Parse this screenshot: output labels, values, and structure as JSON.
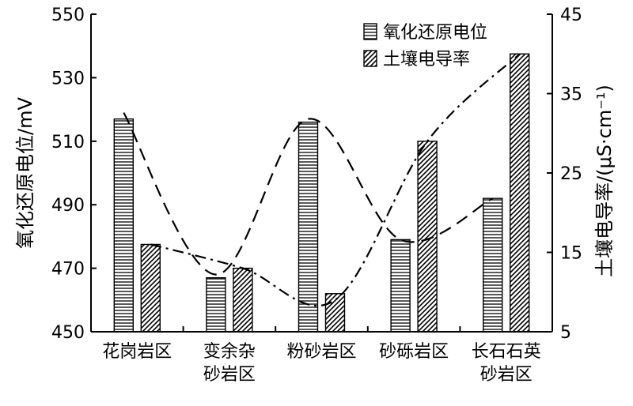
{
  "chart_data": {
    "type": "bar",
    "categories": [
      "花岗岩区",
      "变余杂\n砂岩区",
      "粉砂岩区",
      "砂砾岩区",
      "长石石英\n砂岩区"
    ],
    "series": [
      {
        "name": "氧化还原电位",
        "axis": "left",
        "pattern": "horizontal-lines",
        "values": [
          517,
          467,
          516,
          479,
          492
        ]
      },
      {
        "name": "土壤电导率",
        "axis": "right",
        "pattern": "diagonal-hatch",
        "values": [
          16,
          13,
          9.8,
          29,
          40
        ]
      }
    ],
    "trend_lines": [
      {
        "series": "氧化还原电位",
        "style": "dashed",
        "points": [
          519,
          468,
          517,
          479,
          492
        ]
      },
      {
        "series": "土壤电导率",
        "style": "dash-dot",
        "points": [
          16,
          13,
          9,
          29,
          40
        ]
      }
    ],
    "y_left": {
      "label": "氧化还原电位/mV",
      "min": 450,
      "max": 550,
      "ticks": [
        450,
        470,
        490,
        510,
        530,
        550
      ]
    },
    "y_right": {
      "label": "土壤电导率/(μS·cm⁻¹)",
      "min": 5,
      "max": 45,
      "ticks": [
        5,
        15,
        25,
        35,
        45
      ]
    },
    "legend_position": "top-right",
    "grid": false
  }
}
